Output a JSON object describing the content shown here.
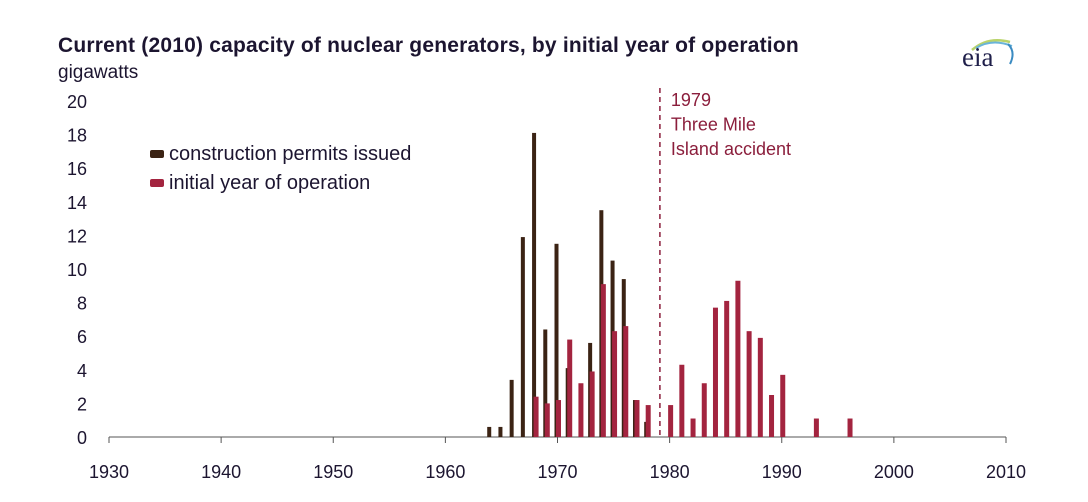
{
  "header": {
    "title": "Current (2010) capacity of nuclear generators, by initial year of operation",
    "unit_label": "gigawatts",
    "logo_text": "eia",
    "logo_icon": "eia-swoosh-logo"
  },
  "chart_data": {
    "type": "bar",
    "title": "Current (2010) capacity of nuclear generators, by initial year of operation",
    "xlabel": "",
    "ylabel": "gigawatts",
    "xlim": [
      1930,
      2010
    ],
    "ylim": [
      0,
      20
    ],
    "x_ticks": [
      "1930",
      "1940",
      "1950",
      "1960",
      "1970",
      "1980",
      "1990",
      "2000",
      "2010"
    ],
    "y_ticks": [
      "0",
      "2",
      "4",
      "6",
      "8",
      "10",
      "12",
      "14",
      "16",
      "18",
      "20"
    ],
    "grid": false,
    "legend_position": "top-left",
    "series": [
      {
        "name": "construction permits issued",
        "color": "#3b2314",
        "points": [
          {
            "year": 1964,
            "value": 0.6
          },
          {
            "year": 1965,
            "value": 0.6
          },
          {
            "year": 1966,
            "value": 3.4
          },
          {
            "year": 1967,
            "value": 11.9
          },
          {
            "year": 1968,
            "value": 18.1
          },
          {
            "year": 1969,
            "value": 6.4
          },
          {
            "year": 1970,
            "value": 11.5
          },
          {
            "year": 1971,
            "value": 4.1
          },
          {
            "year": 1973,
            "value": 5.6
          },
          {
            "year": 1974,
            "value": 13.5
          },
          {
            "year": 1975,
            "value": 10.5
          },
          {
            "year": 1976,
            "value": 9.4
          },
          {
            "year": 1977,
            "value": 2.2
          },
          {
            "year": 1978,
            "value": 0.9
          }
        ]
      },
      {
        "name": "initial year of operation",
        "color": "#a3243f",
        "points": [
          {
            "year": 1968,
            "value": 2.4
          },
          {
            "year": 1969,
            "value": 2.0
          },
          {
            "year": 1970,
            "value": 2.2
          },
          {
            "year": 1971,
            "value": 5.8
          },
          {
            "year": 1972,
            "value": 3.2
          },
          {
            "year": 1973,
            "value": 3.9
          },
          {
            "year": 1974,
            "value": 9.1
          },
          {
            "year": 1975,
            "value": 6.3
          },
          {
            "year": 1976,
            "value": 6.6
          },
          {
            "year": 1977,
            "value": 2.2
          },
          {
            "year": 1978,
            "value": 1.9
          },
          {
            "year": 1980,
            "value": 1.9
          },
          {
            "year": 1981,
            "value": 4.3
          },
          {
            "year": 1982,
            "value": 1.1
          },
          {
            "year": 1983,
            "value": 3.2
          },
          {
            "year": 1984,
            "value": 7.7
          },
          {
            "year": 1985,
            "value": 8.1
          },
          {
            "year": 1986,
            "value": 9.3
          },
          {
            "year": 1987,
            "value": 6.3
          },
          {
            "year": 1988,
            "value": 5.9
          },
          {
            "year": 1989,
            "value": 2.5
          },
          {
            "year": 1990,
            "value": 3.7
          },
          {
            "year": 1993,
            "value": 1.1
          },
          {
            "year": 1996,
            "value": 1.1
          }
        ]
      }
    ],
    "annotations": [
      {
        "year": 1979,
        "lines": [
          "1979",
          "Three Mile",
          "Island accident"
        ],
        "style": "dashed-vertical-line",
        "color": "#8b1e3c"
      }
    ]
  }
}
